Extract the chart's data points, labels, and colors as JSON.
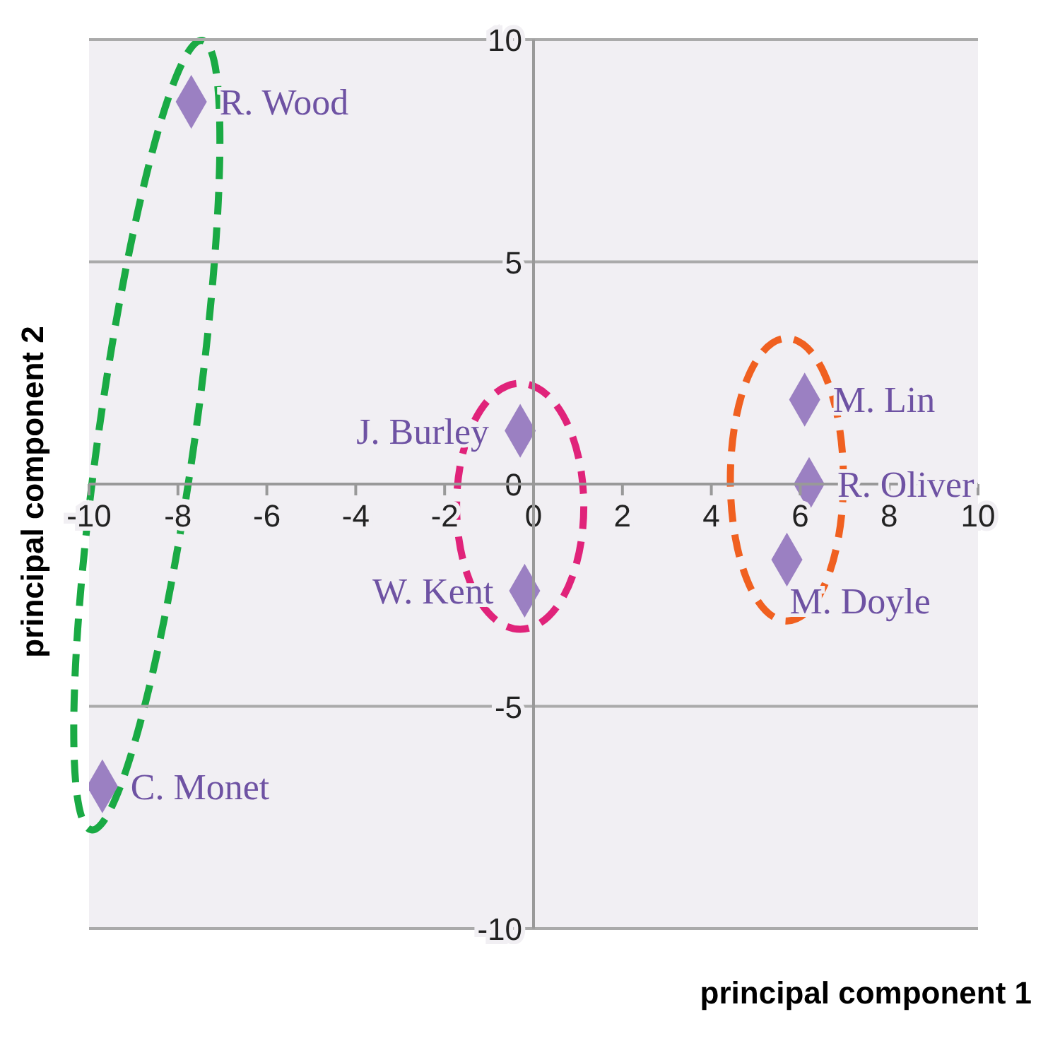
{
  "chart_data": {
    "type": "scatter",
    "xlabel": "principal component 1",
    "ylabel": "principal component 2",
    "x": [
      -7.7,
      -9.7,
      -0.3,
      -0.2,
      6.1,
      6.2,
      5.7
    ],
    "series": [
      {
        "color": "#9b80c2",
        "values": [
          8.6,
          -6.8,
          1.2,
          -2.4,
          1.9,
          0,
          -1.7
        ]
      }
    ],
    "marker": "diamond",
    "xlim": [
      -10,
      10
    ],
    "xticks": [
      -10,
      -8,
      -6,
      -4,
      -2,
      0,
      2,
      4,
      6,
      8,
      10
    ],
    "ylim": [
      -10,
      10
    ],
    "yticks": [
      -10,
      -5,
      0,
      5,
      10
    ],
    "grid": "y",
    "annotations": [
      {
        "text": "R. Wood",
        "x": -7.7,
        "y": 8.6
      },
      {
        "text": "C. Monet",
        "x": -9.7,
        "y": -6.8
      },
      {
        "text": "J. Burley",
        "x": -0.3,
        "y": 1.2
      },
      {
        "text": "W. Kent",
        "x": -0.2,
        "y": -2.4
      },
      {
        "text": "M. Lin",
        "x": 6.1,
        "y": 1.9
      },
      {
        "text": "R. Oliver",
        "x": 6.2,
        "y": 0
      },
      {
        "text": "M. Doyle",
        "x": 5.7,
        "y": -1.7
      }
    ]
  }
}
